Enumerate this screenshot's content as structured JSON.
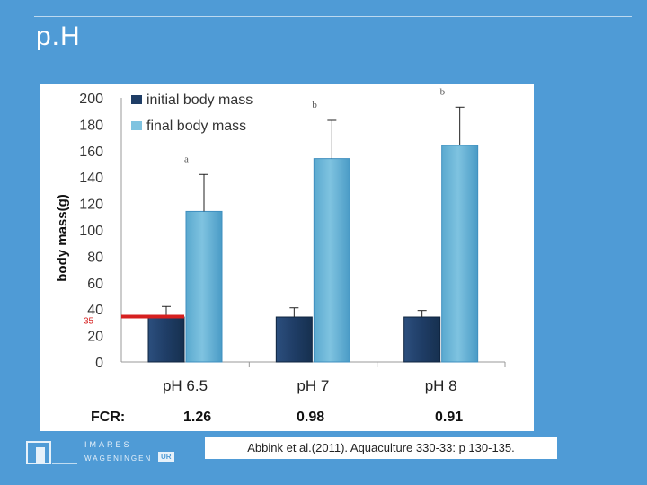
{
  "slide": {
    "title": "p.H",
    "citation": "Abbink et al.(2011). Aquaculture 330-33: p 130-135."
  },
  "logo": {
    "name": "IMARES",
    "sub": "WAGENINGEN",
    "badge": "UR"
  },
  "fcr": {
    "label": "FCR:",
    "values": [
      "1.26",
      "0.98",
      "0.91"
    ]
  },
  "chart_data": {
    "type": "bar",
    "ylabel": "body mass(g)",
    "ylim": [
      0,
      200
    ],
    "yticks": [
      0,
      20,
      40,
      60,
      80,
      100,
      120,
      140,
      160,
      180,
      200
    ],
    "categories": [
      "pH 6.5",
      "pH 7",
      "pH 8"
    ],
    "series": [
      {
        "name": "initial body mass",
        "color": "#1f3d66",
        "values": [
          34,
          34,
          34
        ],
        "errors": [
          8,
          7,
          5
        ]
      },
      {
        "name": "final body mass",
        "color": "#7fc3e0",
        "values": [
          114,
          154,
          164
        ],
        "errors": [
          28,
          29,
          29
        ]
      }
    ],
    "significance_letters": [
      "a",
      "b",
      "b"
    ],
    "reference_line": {
      "value": 35,
      "label": "35",
      "color": "#d62020"
    }
  }
}
